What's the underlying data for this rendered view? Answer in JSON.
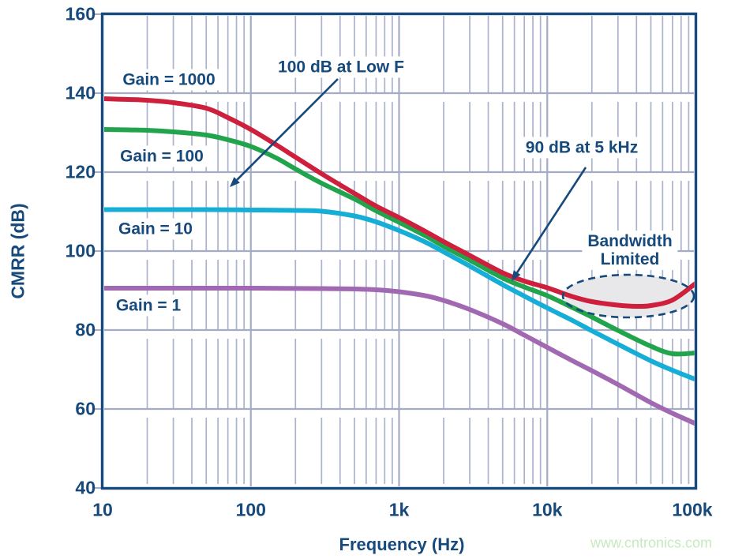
{
  "colors": {
    "navy": "#16497c",
    "grid_minor": "#abb2cb",
    "grid_major": "#a3abc6",
    "red": "#ce1f3c",
    "green": "#21a44c",
    "cyan": "#16aed6",
    "purple": "#a169b1",
    "ellipse_fill": "#e8e8eb",
    "watermark_green": "#c6eabf",
    "background": "#ffffff"
  },
  "chart_data": {
    "type": "line",
    "title": "",
    "xlabel": "Frequency (Hz)",
    "ylabel": "CMRR (dB)",
    "x_scale": "log",
    "xlim": [
      10,
      100000
    ],
    "ylim": [
      40,
      160
    ],
    "y_tick_step": 20,
    "grid": "vertical log minor lines 2-9 per decade; horizontal major lines every 20 dB; legend none",
    "x_tick_labels": [
      {
        "value": 10,
        "label": "10"
      },
      {
        "value": 100,
        "label": "100"
      },
      {
        "value": 1000,
        "label": "1k"
      },
      {
        "value": 10000,
        "label": "10k"
      },
      {
        "value": 100000,
        "label": "100k"
      }
    ],
    "y_tick_labels": [
      {
        "value": 160,
        "label": "160"
      },
      {
        "value": 140,
        "label": "140"
      },
      {
        "value": 120,
        "label": "120"
      },
      {
        "value": 100,
        "label": "100"
      },
      {
        "value": 80,
        "label": "80"
      },
      {
        "value": 60,
        "label": "60"
      },
      {
        "value": 40,
        "label": "40"
      }
    ],
    "series": [
      {
        "name": "Gain = 1000",
        "color_key": "red",
        "points": [
          [
            10,
            138.6
          ],
          [
            15,
            138.4
          ],
          [
            20,
            138.2
          ],
          [
            30,
            137.6
          ],
          [
            50,
            136.2
          ],
          [
            70,
            133.8
          ],
          [
            100,
            130.8
          ],
          [
            150,
            126.8
          ],
          [
            200,
            123.8
          ],
          [
            300,
            119.6
          ],
          [
            500,
            114.6
          ],
          [
            700,
            111.4
          ],
          [
            1000,
            108.5
          ],
          [
            1500,
            105.0
          ],
          [
            2000,
            102.4
          ],
          [
            3000,
            98.9
          ],
          [
            5000,
            94.5
          ],
          [
            7000,
            92.4
          ],
          [
            10000,
            90.7
          ],
          [
            15000,
            88.4
          ],
          [
            20000,
            87.2
          ],
          [
            30000,
            86.3
          ],
          [
            40000,
            86.0
          ],
          [
            50000,
            86.2
          ],
          [
            70000,
            87.6
          ],
          [
            100000,
            91.8
          ]
        ]
      },
      {
        "name": "Gain = 100",
        "color_key": "green",
        "points": [
          [
            10,
            130.8
          ],
          [
            15,
            130.7
          ],
          [
            20,
            130.6
          ],
          [
            30,
            130.2
          ],
          [
            50,
            129.4
          ],
          [
            70,
            128.2
          ],
          [
            100,
            126.5
          ],
          [
            150,
            123.5
          ],
          [
            200,
            120.8
          ],
          [
            300,
            117.2
          ],
          [
            500,
            113.2
          ],
          [
            700,
            110.2
          ],
          [
            1000,
            107.3
          ],
          [
            1500,
            103.9
          ],
          [
            2000,
            101.2
          ],
          [
            3000,
            97.7
          ],
          [
            5000,
            93.2
          ],
          [
            7000,
            90.9
          ],
          [
            10000,
            88.7
          ],
          [
            15000,
            85.6
          ],
          [
            20000,
            83.3
          ],
          [
            30000,
            79.9
          ],
          [
            50000,
            75.9
          ],
          [
            70000,
            74.0
          ],
          [
            100000,
            74.2
          ]
        ]
      },
      {
        "name": "Gain = 10",
        "color_key": "cyan",
        "points": [
          [
            10,
            110.5
          ],
          [
            50,
            110.5
          ],
          [
            100,
            110.4
          ],
          [
            200,
            110.3
          ],
          [
            300,
            110.1
          ],
          [
            500,
            108.9
          ],
          [
            700,
            107.4
          ],
          [
            1000,
            105.2
          ],
          [
            1500,
            102.3
          ],
          [
            2000,
            99.8
          ],
          [
            3000,
            96.2
          ],
          [
            5000,
            91.5
          ],
          [
            7000,
            88.6
          ],
          [
            10000,
            85.6
          ],
          [
            15000,
            82.3
          ],
          [
            20000,
            79.8
          ],
          [
            30000,
            76.4
          ],
          [
            50000,
            72.2
          ],
          [
            70000,
            69.8
          ],
          [
            100000,
            67.5
          ]
        ]
      },
      {
        "name": "Gain = 1",
        "color_key": "purple",
        "points": [
          [
            10,
            90.6
          ],
          [
            100,
            90.6
          ],
          [
            300,
            90.5
          ],
          [
            500,
            90.4
          ],
          [
            700,
            90.2
          ],
          [
            1000,
            89.7
          ],
          [
            1500,
            88.7
          ],
          [
            2000,
            87.5
          ],
          [
            3000,
            85.2
          ],
          [
            5000,
            81.6
          ],
          [
            7000,
            78.7
          ],
          [
            10000,
            75.6
          ],
          [
            15000,
            72.1
          ],
          [
            20000,
            69.7
          ],
          [
            30000,
            66.2
          ],
          [
            50000,
            61.6
          ],
          [
            70000,
            58.9
          ],
          [
            100000,
            56.3
          ]
        ]
      }
    ],
    "annotations": {
      "low_f": "100 dB at Low F",
      "khz5": "90 dB at 5 kHz",
      "bandwidth_line1": "Bandwidth",
      "bandwidth_line2": "Limited"
    }
  },
  "watermark": "www.cntronics.com"
}
